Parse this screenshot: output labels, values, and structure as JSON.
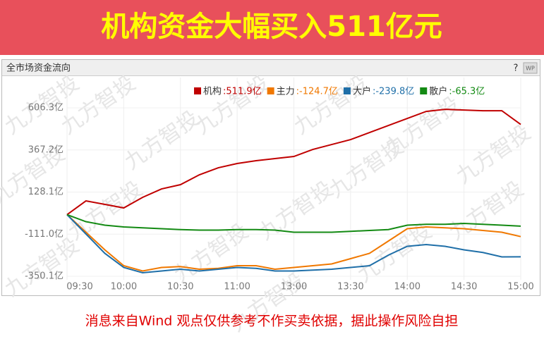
{
  "banner": {
    "title": "机构资金大幅买入511亿元"
  },
  "panel": {
    "title": "全市场资金流向",
    "help": "?",
    "badge": "WP"
  },
  "watermark": "九方智投",
  "chart_data": {
    "type": "line",
    "x": [
      "09:30",
      "09:40",
      "09:50",
      "10:00",
      "10:10",
      "10:20",
      "10:30",
      "10:40",
      "10:50",
      "11:00",
      "11:10",
      "11:20",
      "13:00",
      "13:10",
      "13:20",
      "13:30",
      "13:40",
      "13:50",
      "14:00",
      "14:10",
      "14:20",
      "14:30",
      "14:40",
      "14:50",
      "15:00"
    ],
    "xticks": [
      "09:30",
      "10:00",
      "10:30",
      "11:00",
      "13:00",
      "13:30",
      "14:00",
      "14:30",
      "15:00"
    ],
    "ylim": [
      -350.1,
      606.3
    ],
    "yticks": [
      {
        "value": 606.3,
        "label": "606.3亿"
      },
      {
        "value": 367.2,
        "label": "367.2亿"
      },
      {
        "value": 128.1,
        "label": "128.1亿"
      },
      {
        "value": -111.0,
        "label": "-111.0亿"
      },
      {
        "value": -350.1,
        "label": "-350.1亿"
      }
    ],
    "grid": true,
    "series": [
      {
        "name": "机构",
        "last_label": ":511.9亿",
        "color": "#c00000",
        "values": [
          0,
          78,
          58,
          38,
          98,
          146,
          170,
          226,
          266,
          290,
          306,
          318,
          330,
          370,
          398,
          426,
          466,
          506,
          546,
          586,
          598,
          594,
          590,
          590,
          511.9
        ]
      },
      {
        "name": "主力",
        "last_label": ":-124.7亿",
        "color": "#f07800",
        "values": [
          0,
          -100,
          -200,
          -290,
          -320,
          -300,
          -295,
          -310,
          -305,
          -290,
          -290,
          -310,
          -300,
          -290,
          -280,
          -250,
          -220,
          -150,
          -80,
          -70,
          -75,
          -80,
          -90,
          -100,
          -124.7
        ]
      },
      {
        "name": "大户",
        "last_label": ":-239.8亿",
        "color": "#1f6fa8",
        "values": [
          0,
          -110,
          -220,
          -300,
          -330,
          -320,
          -310,
          -320,
          -310,
          -300,
          -305,
          -320,
          -320,
          -315,
          -310,
          -300,
          -290,
          -230,
          -180,
          -170,
          -180,
          -200,
          -215,
          -240,
          -239.8
        ]
      },
      {
        "name": "散户",
        "last_label": ":-65.3亿",
        "color": "#138a13",
        "values": [
          0,
          -40,
          -60,
          -70,
          -75,
          -80,
          -85,
          -88,
          -88,
          -85,
          -85,
          -88,
          -100,
          -100,
          -100,
          -95,
          -90,
          -85,
          -60,
          -55,
          -55,
          -50,
          -55,
          -60,
          -65.3
        ]
      }
    ]
  },
  "footer": {
    "disclaimer": "消息来自Wind  观点仅供参考不作买卖依据，据此操作风险自担"
  }
}
